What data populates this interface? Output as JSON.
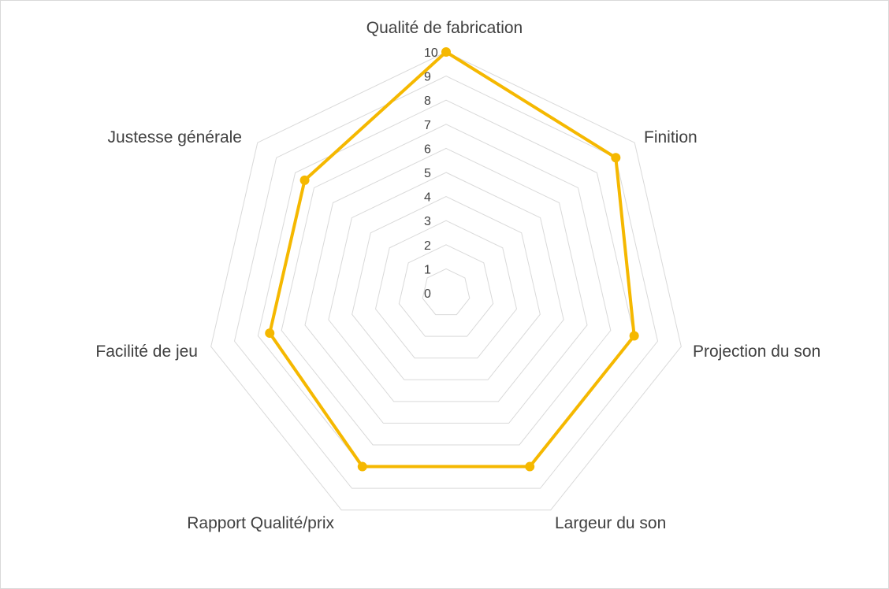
{
  "chart_data": {
    "type": "radar",
    "title": "",
    "categories": [
      "Qualité de fabrication",
      "Finition",
      "Projection du son",
      "Largeur du son",
      "Rapport Qualité/prix",
      "Facilité de jeu",
      "Justesse générale"
    ],
    "series": [
      {
        "values": [
          10,
          9,
          8,
          8,
          8,
          7.5,
          7.5
        ]
      }
    ],
    "rlim": [
      0,
      10
    ],
    "ticks": [
      "0",
      "1",
      "2",
      "3",
      "4",
      "5",
      "6",
      "7",
      "8",
      "9",
      "10"
    ],
    "grid": true,
    "legend": "none",
    "colors": {
      "series": "#f5b800",
      "grid": "#d9d9d9",
      "text": "#404040"
    }
  }
}
